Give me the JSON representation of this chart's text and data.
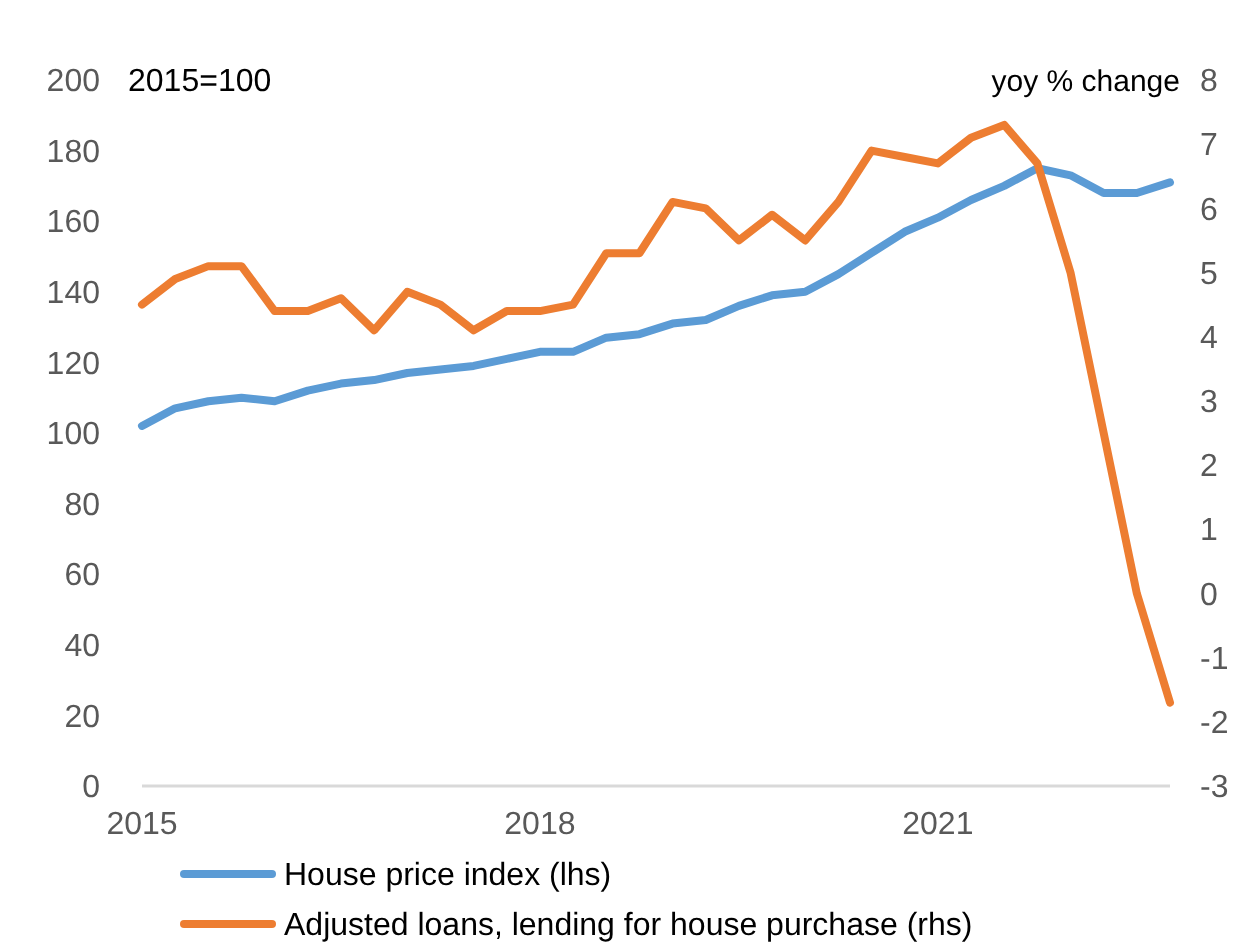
{
  "chart_data": {
    "type": "line",
    "ylabel": "2015=100",
    "y2label": "yoy % change",
    "x": [
      2015,
      2015.25,
      2015.5,
      2015.75,
      2016,
      2016.25,
      2016.5,
      2016.75,
      2017,
      2017.25,
      2017.5,
      2017.75,
      2018,
      2018.25,
      2018.5,
      2018.75,
      2019,
      2019.25,
      2019.5,
      2019.75,
      2020,
      2020.25,
      2020.5,
      2020.75,
      2021,
      2021.25,
      2021.5,
      2021.75,
      2022,
      2022.25,
      2022.5,
      2022.75
    ],
    "xlim": [
      2015,
      2022.75
    ],
    "xticks": [
      2015,
      2018,
      2021
    ],
    "ylim": [
      0,
      200
    ],
    "yticks": [
      0,
      20,
      40,
      60,
      80,
      100,
      120,
      140,
      160,
      180,
      200
    ],
    "y2lim": [
      -3,
      8
    ],
    "y2ticks": [
      -3,
      -2,
      -1,
      0,
      1,
      2,
      3,
      4,
      5,
      6,
      7,
      8
    ],
    "grid": false,
    "legend": "bottom",
    "marker": "none",
    "line_style": "solid",
    "series": [
      {
        "name": "House price index (lhs)",
        "color": "#5b9bd5",
        "values": [
          102,
          107,
          109,
          110,
          109,
          112,
          114,
          115,
          117,
          118,
          119,
          121,
          123,
          123,
          127,
          128,
          131,
          132,
          136,
          139,
          140,
          145,
          151,
          157,
          161,
          166,
          170,
          175,
          173,
          168,
          168,
          171
        ]
      },
      {
        "name": "Adjusted loans, lending for house purchase (rhs)",
        "color": "#ed7d31",
        "axis": "y2",
        "values": [
          4.5,
          4.9,
          5.1,
          5.1,
          4.4,
          4.4,
          4.6,
          4.1,
          4.7,
          4.5,
          4.1,
          4.4,
          4.4,
          4.5,
          5.3,
          5.3,
          6.1,
          6.0,
          5.5,
          5.9,
          5.5,
          6.1,
          6.9,
          6.8,
          6.7,
          7.1,
          7.3,
          6.7,
          5.0,
          2.5,
          0.0,
          -1.7
        ]
      }
    ]
  }
}
